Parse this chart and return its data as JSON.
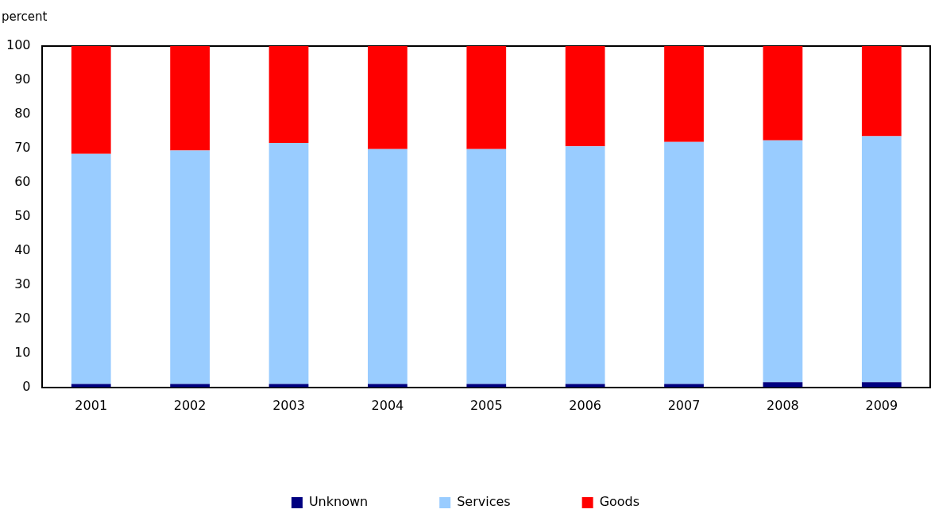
{
  "chart_data": {
    "type": "bar",
    "ylabel": "percent",
    "stacked": true,
    "legend": "bottom",
    "grid": false,
    "categories": [
      "2001",
      "2002",
      "2003",
      "2004",
      "2005",
      "2006",
      "2007",
      "2008",
      "2009"
    ],
    "ylim": [
      0,
      100
    ],
    "yticks": [
      0,
      10,
      20,
      30,
      40,
      50,
      60,
      70,
      80,
      90,
      100
    ],
    "series": [
      {
        "name": "Unknown",
        "color": "#000080",
        "values": [
          1,
          1,
          1,
          1,
          1,
          1,
          1,
          1.5,
          1.5
        ]
      },
      {
        "name": "Services",
        "color": "#99ccff",
        "values": [
          67.4,
          68.4,
          70.6,
          68.8,
          68.8,
          69.6,
          70.9,
          70.9,
          72.1
        ]
      },
      {
        "name": "Goods",
        "color": "#ff0000",
        "values": [
          31.6,
          30.6,
          28.4,
          30.2,
          30.2,
          29.4,
          28.1,
          27.6,
          26.4
        ]
      }
    ]
  }
}
